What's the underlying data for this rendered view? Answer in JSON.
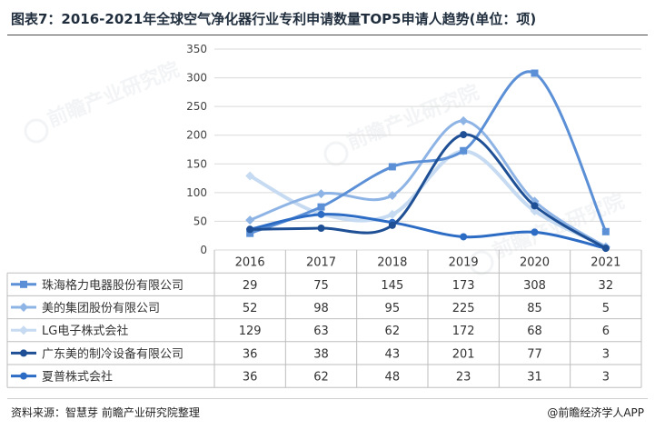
{
  "title": "图表7：2016-2021年全球空气净化器行业专利申请数量TOP5申请人趋势(单位：项)",
  "source": "资料来源：智慧芽 前瞻产业研究院整理",
  "brand": "@前瞻经济学人APP",
  "watermark": "前瞻产业研究院",
  "chart_data": {
    "type": "line",
    "categories": [
      "2016",
      "2017",
      "2018",
      "2019",
      "2020",
      "2021"
    ],
    "ylim": [
      0,
      350
    ],
    "yticks": [
      0,
      50,
      100,
      150,
      200,
      250,
      300,
      350
    ],
    "grid": true,
    "legend": "data-table",
    "series": [
      {
        "name": "珠海格力电器股份有限公司",
        "values": [
          29,
          75,
          145,
          173,
          308,
          32
        ],
        "color": "#5b8fd6",
        "marker": "square",
        "width": 3
      },
      {
        "name": "美的集团股份有限公司",
        "values": [
          52,
          98,
          95,
          225,
          85,
          5
        ],
        "color": "#8eb4e6",
        "marker": "diamond",
        "width": 3
      },
      {
        "name": "LG电子株式会社",
        "values": [
          129,
          63,
          62,
          172,
          68,
          6
        ],
        "color": "#c6dbf2",
        "marker": "diamond",
        "width": 4
      },
      {
        "name": "广东美的制冷设备有限公司",
        "values": [
          36,
          38,
          43,
          201,
          77,
          3
        ],
        "color": "#1f4f94",
        "marker": "circle",
        "width": 3
      },
      {
        "name": "夏普株式会社",
        "values": [
          36,
          62,
          48,
          23,
          31,
          3
        ],
        "color": "#2d6cc4",
        "marker": "circle",
        "width": 3
      }
    ]
  }
}
